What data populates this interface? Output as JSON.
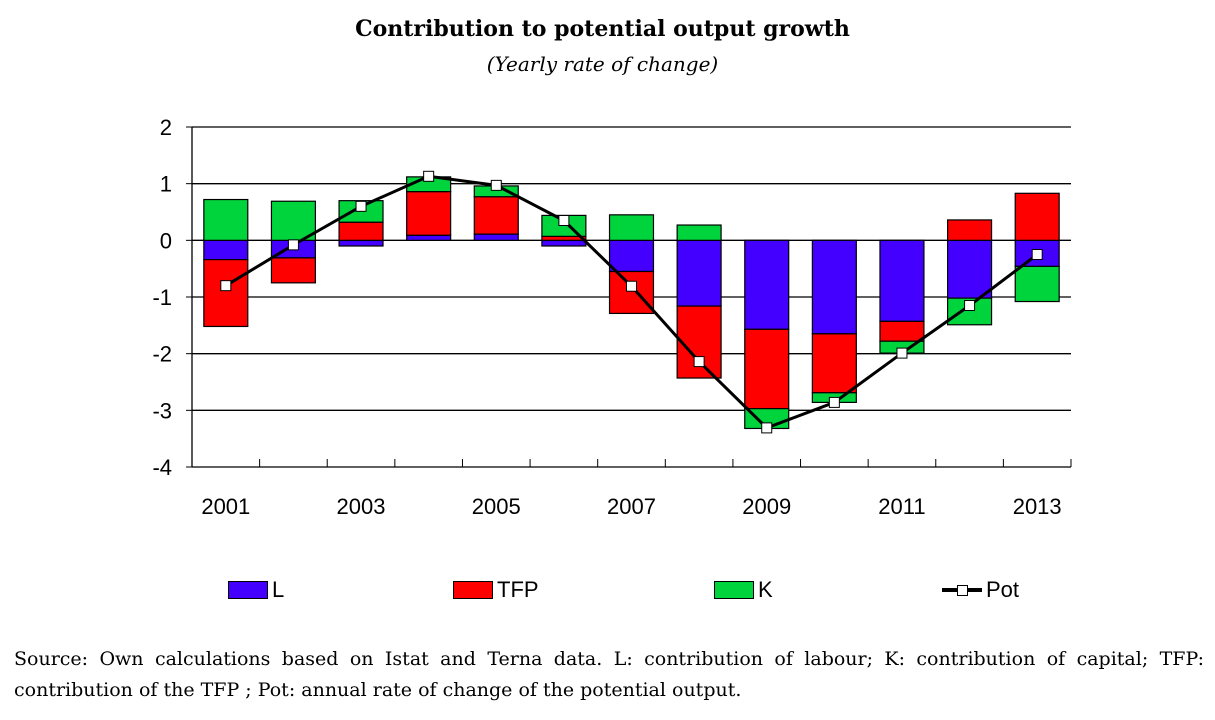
{
  "chart_data": {
    "type": "bar",
    "stacked": true,
    "title": "Contribution to potential output growth",
    "subtitle": "(Yearly rate of change)",
    "xlabel": "",
    "ylabel": "",
    "ylim": [
      -4,
      2
    ],
    "yticks": [
      2,
      1,
      0,
      -1,
      -2,
      -3,
      -4
    ],
    "ytick_labels": [
      "2",
      "1",
      "0",
      "-1",
      "-2",
      "-3",
      "-4"
    ],
    "grid": true,
    "categories": [
      "2001",
      "2002",
      "2003",
      "2004",
      "2005",
      "2006",
      "2007",
      "2008",
      "2009",
      "2010",
      "2011",
      "2012",
      "2013"
    ],
    "xtick_labels": [
      "2001",
      "",
      "2003",
      "",
      "2005",
      "",
      "2007",
      "",
      "2009",
      "",
      "2011",
      "",
      "2013"
    ],
    "series": [
      {
        "name": "L",
        "kind": "bar",
        "color": "#4400ff",
        "values": [
          -0.34,
          -0.31,
          -0.1,
          0.09,
          0.11,
          -0.1,
          -0.55,
          -1.16,
          -1.57,
          -1.65,
          -1.43,
          -1.02,
          -0.46
        ]
      },
      {
        "name": "TFP",
        "kind": "bar",
        "color": "#ff0000",
        "values": [
          -1.18,
          -0.44,
          0.32,
          0.77,
          0.66,
          0.07,
          -0.74,
          -1.27,
          -1.4,
          -1.04,
          -0.35,
          0.36,
          0.83
        ]
      },
      {
        "name": "K",
        "kind": "bar",
        "color": "#00d43c",
        "values": [
          0.72,
          0.69,
          0.38,
          0.26,
          0.19,
          0.37,
          0.45,
          0.27,
          -0.35,
          -0.17,
          -0.21,
          -0.47,
          -0.62
        ]
      },
      {
        "name": "Pot",
        "kind": "line",
        "color": "#000000",
        "marker": "square",
        "values": [
          -0.8,
          -0.08,
          0.6,
          1.13,
          0.97,
          0.35,
          -0.81,
          -2.14,
          -3.31,
          -2.86,
          -1.99,
          -1.15,
          -0.25
        ]
      }
    ],
    "legend": {
      "placement": "bottom",
      "items": [
        {
          "label": "L",
          "color": "#4400ff",
          "kind": "bar"
        },
        {
          "label": "TFP",
          "color": "#ff0000",
          "kind": "bar"
        },
        {
          "label": "K",
          "color": "#00d43c",
          "kind": "bar"
        },
        {
          "label": "Pot",
          "color": "#000000",
          "kind": "line"
        }
      ]
    }
  },
  "source_note": "Source: Own calculations based on Istat and Terna data. L: contribution of labour; K: contribution of capital; TFP: contribution of the TFP ; Pot: annual rate of change of the potential output."
}
